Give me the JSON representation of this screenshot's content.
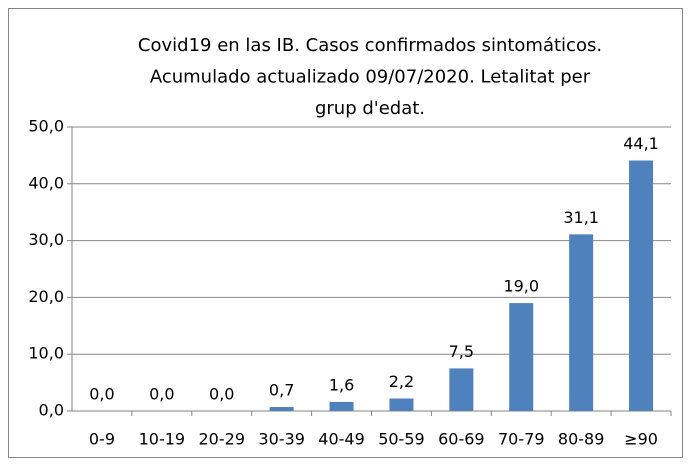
{
  "chart_data": {
    "type": "bar",
    "title": [
      "Covid19 en las IB. Casos confirmados  sintomáticos.",
      "Acumulado actualizado 09/07/2020. Letalitat per",
      "grup d'edat."
    ],
    "categories": [
      "0-9",
      "10-19",
      "20-29",
      "30-39",
      "40-49",
      "50-59",
      "60-69",
      "70-79",
      "80-89",
      "≥90"
    ],
    "values": [
      0.0,
      0.0,
      0.0,
      0.7,
      1.6,
      2.2,
      7.5,
      19.0,
      31.1,
      44.1
    ],
    "value_labels": [
      "0,0",
      "0,0",
      "0,0",
      "0,7",
      "1,6",
      "2,2",
      "7,5",
      "19,0",
      "31,1",
      "44,1"
    ],
    "color": "#4f81bd",
    "ylim": [
      0,
      50
    ],
    "yticks": [
      {
        "value": 0,
        "label": "0,0"
      },
      {
        "value": 10,
        "label": "10,0"
      },
      {
        "value": 20,
        "label": "20,0"
      },
      {
        "value": 30,
        "label": "30,0"
      },
      {
        "value": 40,
        "label": "40,0"
      },
      {
        "value": 50,
        "label": "50,0"
      }
    ],
    "grid": true
  }
}
